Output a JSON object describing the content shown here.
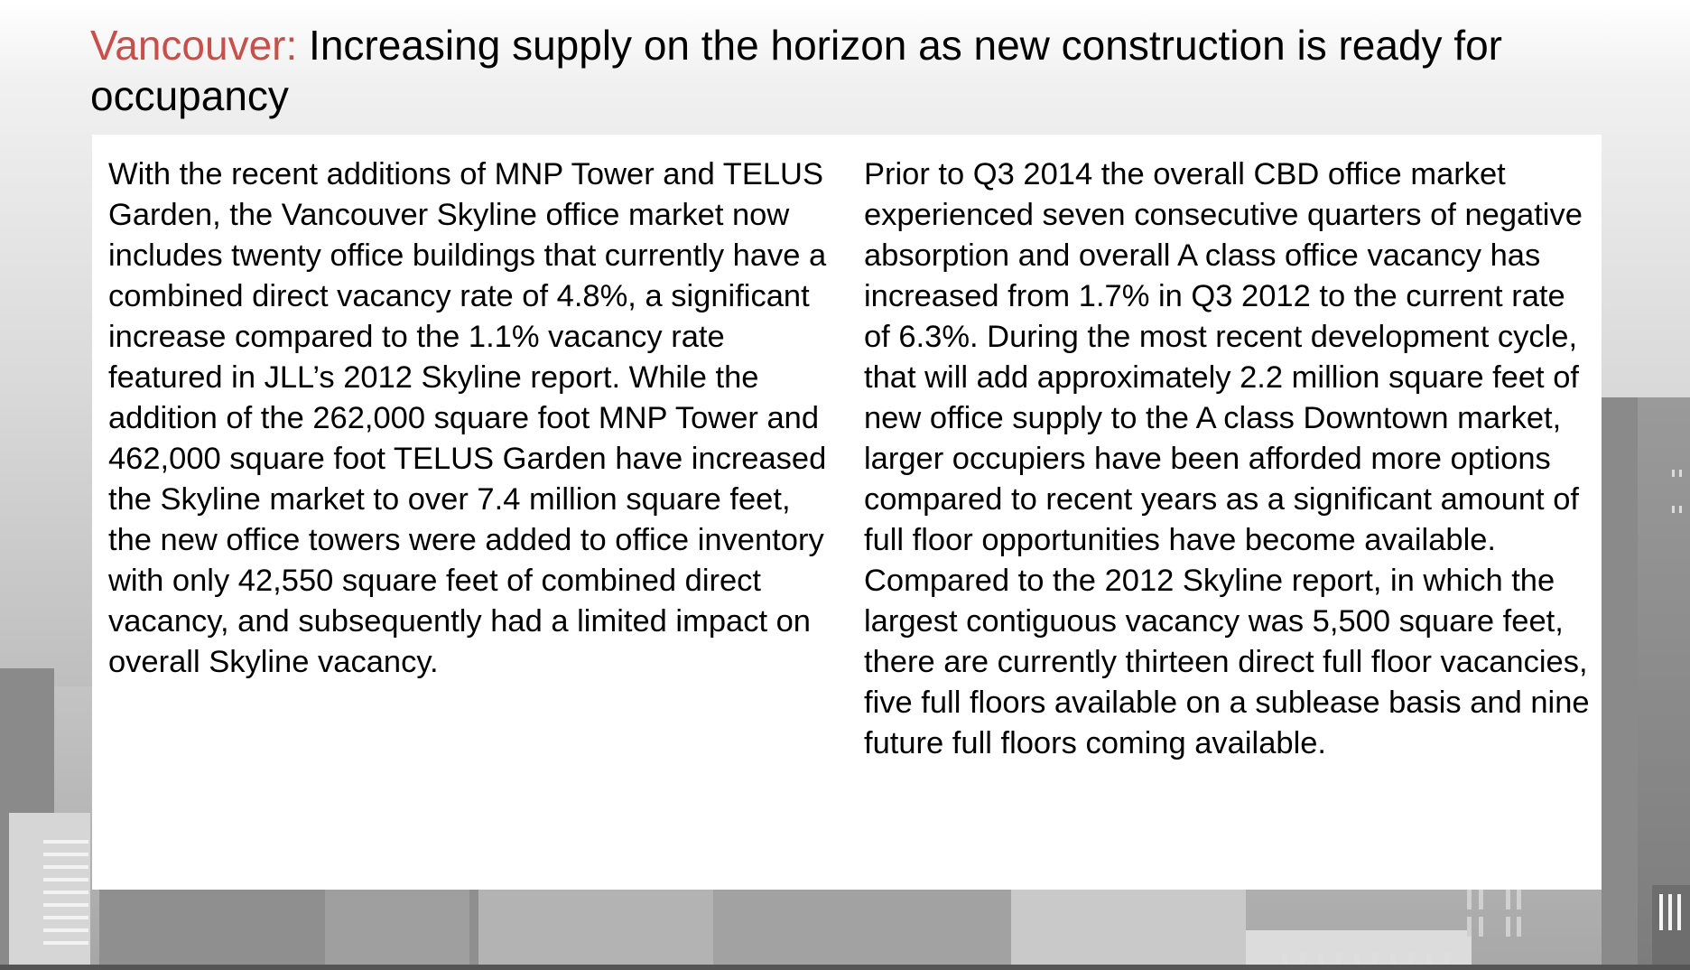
{
  "slide": {
    "title_accent": "Vancouver:",
    "title_rest": " Increasing supply on the horizon as new construction is ready for occupancy"
  },
  "body": {
    "left_paragraph": "With the recent additions of MNP Tower and TELUS Garden, the Vancouver Skyline office market now includes twenty office buildings that currently have a combined direct vacancy rate of 4.8%, a significant increase compared to the 1.1% vacancy rate featured in JLL’s 2012 Skyline report. While the addition of the 262,000 square foot MNP Tower and 462,000 square foot TELUS Garden have increased the Skyline market to over 7.4 million square feet, the new office towers were added to office inventory with only 42,550 square feet of combined direct vacancy, and subsequently had a limited impact on overall Skyline vacancy.",
    "right_paragraph_1": "Prior to Q3 2014 the overall CBD office market experienced seven consecutive quarters of negative absorption and overall A class office vacancy has increased from 1.7% in Q3 2012 to the current rate of 6.3%. During the most recent development cycle, that will add approximately 2.2 million square feet of new office supply to the A class Downtown market, larger occupiers have been afforded more options compared to recent years as a significant amount of full floor opportunities have become available.",
    "right_paragraph_2": "Compared to the 2012 Skyline report, in which the largest contiguous vacancy was 5,500 square feet, there are currently thirteen direct full floor vacancies, five full floors available on a sublease basis and nine future full floors coming available."
  },
  "colors": {
    "accent": "#c8504b",
    "panel": "#ffffff",
    "text": "#000000"
  }
}
